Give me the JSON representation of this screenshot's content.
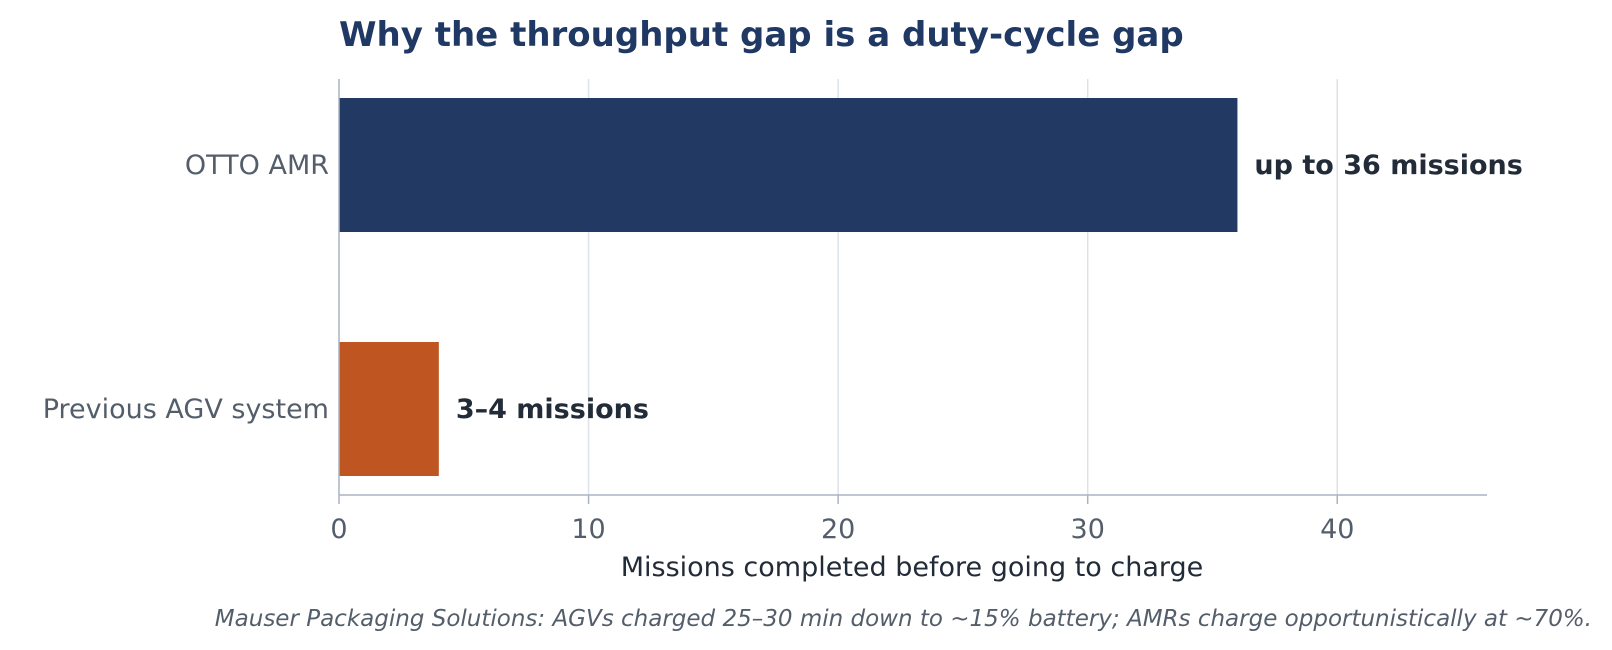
{
  "chart_data": {
    "type": "bar",
    "orientation": "horizontal",
    "title": "Why the throughput gap is a duty-cycle gap",
    "xlabel": "Missions completed before going to charge",
    "ylabel": "",
    "xlim": [
      0,
      46
    ],
    "x_ticks": [
      0,
      10,
      20,
      30,
      40
    ],
    "grid": "vertical",
    "categories": [
      "OTTO AMR",
      "Previous AGV system"
    ],
    "values": [
      36,
      4
    ],
    "data_labels": [
      "up to 36 missions",
      "3–4 missions"
    ],
    "bar_colors": [
      "#213963",
      "#bf5621"
    ],
    "footnote": "Mauser Packaging Solutions: AGVs charged 25–30 min down to ~15% battery; AMRs charge opportunistically at ~70%."
  },
  "colors": {
    "title": "#1f3864",
    "category_text": "#545e6b",
    "tick_text": "#545e6b",
    "axis_label_text": "#222b38",
    "data_label_text": "#222b38",
    "footnote_text": "#545e6b",
    "grid": "#dde2ea",
    "axis": "#aab4c4"
  }
}
